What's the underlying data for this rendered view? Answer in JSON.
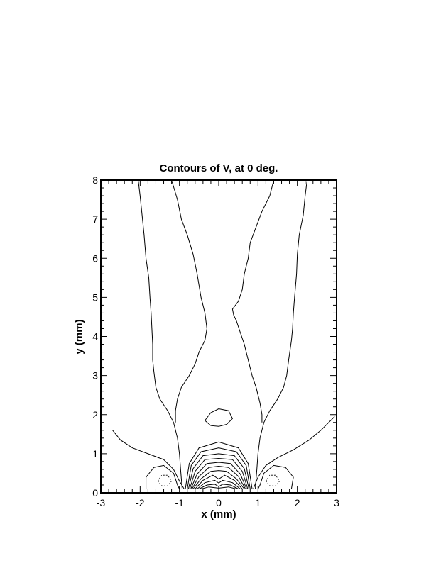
{
  "chart_data": {
    "type": "contour",
    "title": "Contours of V, at 0 deg.",
    "xlabel": "x (mm)",
    "ylabel": "y (mm)",
    "xlim": [
      -3,
      3
    ],
    "ylim": [
      0,
      8
    ],
    "x_ticks": [
      -3,
      -2,
      -1,
      0,
      1,
      2,
      3
    ],
    "y_ticks": [
      0,
      1,
      2,
      3,
      4,
      5,
      6,
      7,
      8
    ],
    "x_tick_labels": [
      "-3",
      "-2",
      "-1",
      "0",
      "1",
      "2",
      "3"
    ],
    "y_tick_labels": [
      "0",
      "1",
      "2",
      "3",
      "4",
      "5",
      "6",
      "7",
      "8"
    ],
    "grid": false,
    "contours": [
      {
        "style": "solid",
        "points": [
          [
            -2.05,
            8
          ],
          [
            -2.0,
            7.6
          ],
          [
            -1.95,
            7.1
          ],
          [
            -1.9,
            6.6
          ],
          [
            -1.85,
            6.0
          ],
          [
            -1.78,
            5.5
          ],
          [
            -1.75,
            5.0
          ],
          [
            -1.72,
            4.6
          ],
          [
            -1.7,
            4.2
          ],
          [
            -1.68,
            3.8
          ],
          [
            -1.68,
            3.4
          ],
          [
            -1.65,
            3.1
          ],
          [
            -1.6,
            2.7
          ],
          [
            -1.5,
            2.4
          ],
          [
            -1.3,
            2.1
          ],
          [
            -1.15,
            1.8
          ],
          [
            -1.05,
            1.4
          ],
          [
            -1.0,
            1.0
          ],
          [
            -0.97,
            0.6
          ],
          [
            -0.93,
            0.1
          ]
        ]
      },
      {
        "style": "solid",
        "points": [
          [
            2.25,
            8
          ],
          [
            2.2,
            7.6
          ],
          [
            2.15,
            7.1
          ],
          [
            2.05,
            6.6
          ],
          [
            2.0,
            6.1
          ],
          [
            1.98,
            5.6
          ],
          [
            1.93,
            5.0
          ],
          [
            1.9,
            4.6
          ],
          [
            1.88,
            4.2
          ],
          [
            1.85,
            3.9
          ],
          [
            1.78,
            3.4
          ],
          [
            1.73,
            3.0
          ],
          [
            1.65,
            2.7
          ],
          [
            1.5,
            2.4
          ],
          [
            1.3,
            2.1
          ],
          [
            1.15,
            1.8
          ],
          [
            1.05,
            1.4
          ],
          [
            1.0,
            1.0
          ],
          [
            0.97,
            0.6
          ],
          [
            0.93,
            0.1
          ]
        ]
      },
      {
        "style": "solid",
        "points": [
          [
            -1.2,
            8
          ],
          [
            -1.05,
            7.5
          ],
          [
            -0.95,
            7.0
          ],
          [
            -0.8,
            6.6
          ],
          [
            -0.65,
            6.1
          ],
          [
            -0.55,
            5.6
          ],
          [
            -0.45,
            5.0
          ],
          [
            -0.35,
            4.6
          ],
          [
            -0.3,
            4.2
          ],
          [
            -0.35,
            3.9
          ],
          [
            -0.5,
            3.6
          ],
          [
            -0.6,
            3.3
          ],
          [
            -0.75,
            3.0
          ],
          [
            -0.95,
            2.7
          ],
          [
            -1.05,
            2.4
          ],
          [
            -1.1,
            2.1
          ],
          [
            -1.1,
            1.8
          ]
        ]
      },
      {
        "style": "solid",
        "points": [
          [
            1.4,
            8
          ],
          [
            1.3,
            7.6
          ],
          [
            1.1,
            7.2
          ],
          [
            0.95,
            6.8
          ],
          [
            0.8,
            6.4
          ],
          [
            0.75,
            6.0
          ],
          [
            0.65,
            5.6
          ],
          [
            0.6,
            5.2
          ],
          [
            0.5,
            4.9
          ],
          [
            0.35,
            4.7
          ],
          [
            0.38,
            4.55
          ],
          [
            0.45,
            4.4
          ],
          [
            0.55,
            4.1
          ],
          [
            0.65,
            3.8
          ],
          [
            0.75,
            3.4
          ],
          [
            0.85,
            3.0
          ],
          [
            0.95,
            2.7
          ],
          [
            1.05,
            2.3
          ],
          [
            1.1,
            2.0
          ],
          [
            1.1,
            1.8
          ]
        ]
      },
      {
        "style": "solid",
        "points": [
          [
            -2.7,
            1.6
          ],
          [
            -2.5,
            1.35
          ],
          [
            -2.2,
            1.15
          ],
          [
            -1.8,
            1.0
          ],
          [
            -1.4,
            0.85
          ],
          [
            -1.15,
            0.6
          ],
          [
            -1.0,
            0.3
          ],
          [
            -0.88,
            0.1
          ]
        ]
      },
      {
        "style": "solid",
        "points": [
          [
            2.95,
            1.95
          ],
          [
            2.6,
            1.6
          ],
          [
            2.3,
            1.35
          ],
          [
            1.9,
            1.1
          ],
          [
            1.5,
            0.9
          ],
          [
            1.2,
            0.7
          ],
          [
            1.0,
            0.4
          ],
          [
            0.88,
            0.1
          ]
        ]
      },
      {
        "style": "solid",
        "points": [
          [
            -1.85,
            0.1
          ],
          [
            -1.85,
            0.4
          ],
          [
            -1.65,
            0.65
          ],
          [
            -1.4,
            0.7
          ],
          [
            -1.15,
            0.5
          ],
          [
            -1.05,
            0.2
          ],
          [
            -1.0,
            0.1
          ]
        ]
      },
      {
        "style": "solid",
        "points": [
          [
            1.85,
            0.1
          ],
          [
            1.9,
            0.4
          ],
          [
            1.7,
            0.65
          ],
          [
            1.4,
            0.7
          ],
          [
            1.15,
            0.5
          ],
          [
            1.05,
            0.2
          ],
          [
            1.0,
            0.1
          ]
        ]
      },
      {
        "style": "dashed",
        "closed": true,
        "points": [
          [
            -1.55,
            0.3
          ],
          [
            -1.45,
            0.45
          ],
          [
            -1.3,
            0.45
          ],
          [
            -1.2,
            0.3
          ],
          [
            -1.3,
            0.18
          ],
          [
            -1.45,
            0.18
          ]
        ]
      },
      {
        "style": "dashed",
        "closed": true,
        "points": [
          [
            1.2,
            0.3
          ],
          [
            1.3,
            0.45
          ],
          [
            1.45,
            0.45
          ],
          [
            1.55,
            0.3
          ],
          [
            1.45,
            0.18
          ],
          [
            1.3,
            0.18
          ]
        ]
      },
      {
        "style": "solid",
        "closed": true,
        "points": [
          [
            -0.35,
            1.85
          ],
          [
            -0.2,
            2.05
          ],
          [
            0.0,
            2.15
          ],
          [
            0.25,
            2.1
          ],
          [
            0.35,
            1.9
          ],
          [
            0.2,
            1.75
          ],
          [
            0.0,
            1.7
          ],
          [
            -0.2,
            1.72
          ]
        ]
      },
      {
        "style": "solid",
        "points": [
          [
            -0.85,
            0.1
          ],
          [
            -0.75,
            0.75
          ],
          [
            -0.5,
            1.15
          ],
          [
            0.0,
            1.3
          ],
          [
            0.5,
            1.15
          ],
          [
            0.75,
            0.75
          ],
          [
            0.85,
            0.1
          ]
        ]
      },
      {
        "style": "solid",
        "points": [
          [
            -0.8,
            0.1
          ],
          [
            -0.7,
            0.7
          ],
          [
            -0.45,
            1.05
          ],
          [
            0.0,
            1.15
          ],
          [
            0.45,
            1.05
          ],
          [
            0.7,
            0.7
          ],
          [
            0.8,
            0.1
          ]
        ]
      },
      {
        "style": "solid",
        "points": [
          [
            -0.77,
            0.1
          ],
          [
            -0.65,
            0.62
          ],
          [
            -0.4,
            0.95
          ],
          [
            0.0,
            1.0
          ],
          [
            0.4,
            0.95
          ],
          [
            0.65,
            0.62
          ],
          [
            0.77,
            0.1
          ]
        ]
      },
      {
        "style": "solid",
        "points": [
          [
            -0.74,
            0.1
          ],
          [
            -0.6,
            0.55
          ],
          [
            -0.35,
            0.85
          ],
          [
            0.0,
            0.88
          ],
          [
            0.35,
            0.85
          ],
          [
            0.6,
            0.55
          ],
          [
            0.74,
            0.1
          ]
        ]
      },
      {
        "style": "solid",
        "points": [
          [
            -0.71,
            0.1
          ],
          [
            -0.55,
            0.48
          ],
          [
            -0.3,
            0.75
          ],
          [
            0.0,
            0.78
          ],
          [
            0.3,
            0.75
          ],
          [
            0.55,
            0.48
          ],
          [
            0.71,
            0.1
          ]
        ]
      },
      {
        "style": "solid",
        "points": [
          [
            -0.68,
            0.1
          ],
          [
            -0.5,
            0.42
          ],
          [
            -0.25,
            0.65
          ],
          [
            0.0,
            0.68
          ],
          [
            0.25,
            0.65
          ],
          [
            0.5,
            0.42
          ],
          [
            0.68,
            0.1
          ]
        ]
      },
      {
        "style": "solid",
        "points": [
          [
            -0.65,
            0.1
          ],
          [
            -0.45,
            0.36
          ],
          [
            -0.2,
            0.55
          ],
          [
            0.0,
            0.57
          ],
          [
            0.2,
            0.55
          ],
          [
            0.45,
            0.36
          ],
          [
            0.65,
            0.1
          ]
        ]
      },
      {
        "style": "solid",
        "points": [
          [
            -0.6,
            0.1
          ],
          [
            -0.4,
            0.32
          ],
          [
            -0.15,
            0.45
          ],
          [
            0.0,
            0.35
          ],
          [
            0.15,
            0.45
          ],
          [
            0.4,
            0.32
          ],
          [
            0.6,
            0.1
          ]
        ]
      },
      {
        "style": "solid",
        "points": [
          [
            -0.55,
            0.1
          ],
          [
            -0.35,
            0.26
          ],
          [
            -0.1,
            0.32
          ],
          [
            0.0,
            0.25
          ],
          [
            0.1,
            0.32
          ],
          [
            0.35,
            0.26
          ],
          [
            0.55,
            0.1
          ]
        ]
      },
      {
        "style": "solid",
        "points": [
          [
            -0.5,
            0.1
          ],
          [
            -0.3,
            0.2
          ],
          [
            -0.1,
            0.22
          ],
          [
            0.0,
            0.16
          ],
          [
            0.1,
            0.22
          ],
          [
            0.3,
            0.2
          ],
          [
            0.5,
            0.1
          ]
        ]
      },
      {
        "style": "solid",
        "points": [
          [
            -0.45,
            0.1
          ],
          [
            -0.25,
            0.15
          ],
          [
            0.0,
            0.12
          ],
          [
            0.25,
            0.15
          ],
          [
            0.45,
            0.1
          ]
        ]
      }
    ]
  }
}
